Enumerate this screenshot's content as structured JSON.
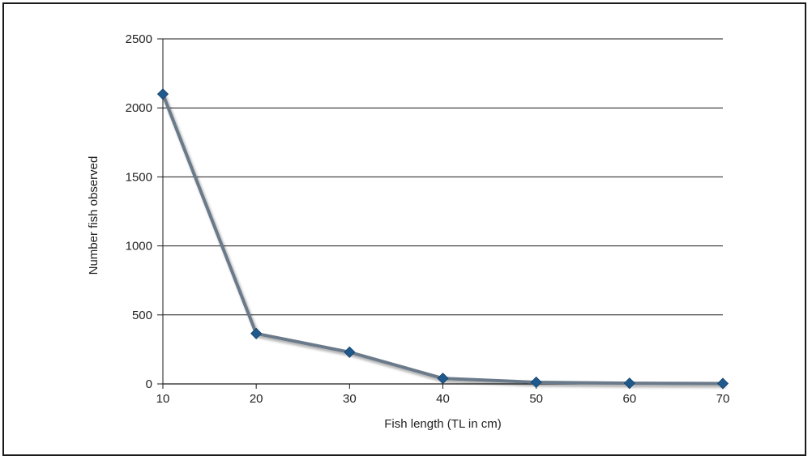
{
  "chart_data": {
    "type": "line",
    "title": "",
    "xlabel": "Fish length (TL in cm)",
    "ylabel": "Number fish observed",
    "x": [
      10,
      20,
      30,
      40,
      50,
      60,
      70
    ],
    "xticks": [
      "10",
      "20",
      "30",
      "40",
      "50",
      "60",
      "70"
    ],
    "yticks": [
      "0",
      "500",
      "1000",
      "1500",
      "2000",
      "2500"
    ],
    "xlim": [
      10,
      70
    ],
    "ylim": [
      0,
      2500
    ],
    "grid": "horizontal",
    "legend": "none",
    "series": [
      {
        "values": [
          2100,
          365,
          230,
          40,
          12,
          5,
          3
        ],
        "line_color": "#6a7a8a",
        "marker": "diamond",
        "marker_color": "#1f5a8f"
      }
    ]
  }
}
